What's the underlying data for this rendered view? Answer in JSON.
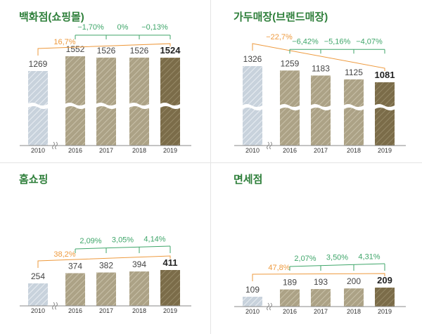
{
  "colors": {
    "title": "#2e7f3a",
    "orange": "#ee9a3e",
    "green": "#3fa66a",
    "axis": "#8a8a8a",
    "base_bar": "#c8d2dc",
    "bar_2016": "#aca286",
    "bar_2017": "#aca286",
    "bar_2018": "#aca286",
    "bar_2019": "#7b6c49",
    "value_text": "#444444",
    "value_text_last": "#222222"
  },
  "chart_data": [
    {
      "type": "bar",
      "title": "백화점(쇼핑몰)",
      "categories": [
        "2010",
        "2016",
        "2017",
        "2018",
        "2019"
      ],
      "values": [
        1269,
        1552,
        1526,
        1526,
        1524
      ],
      "value_labels": [
        "1269",
        "1552",
        "1526",
        "1526",
        "1524"
      ],
      "growth_from_base": "16,7%",
      "yoy_changes": [
        "−1,70%",
        "0%",
        "−0,13%"
      ],
      "axis_break": true,
      "legend": "none"
    },
    {
      "type": "bar",
      "title": "가두매장(브랜드매장)",
      "categories": [
        "2010",
        "2016",
        "2017",
        "2018",
        "2019"
      ],
      "values": [
        1326,
        1259,
        1183,
        1125,
        1081
      ],
      "value_labels": [
        "1326",
        "1259",
        "1183",
        "1125",
        "1081"
      ],
      "growth_from_base": "−22,7%",
      "yoy_changes": [
        "−6,42%",
        "−5,16%",
        "−4,07%"
      ],
      "axis_break": true,
      "legend": "none"
    },
    {
      "type": "bar",
      "title": "홈쇼핑",
      "categories": [
        "2010",
        "2016",
        "2017",
        "2018",
        "2019"
      ],
      "values": [
        254,
        374,
        382,
        394,
        411
      ],
      "value_labels": [
        "254",
        "374",
        "382",
        "394",
        "411"
      ],
      "growth_from_base": "38,2%",
      "yoy_changes": [
        "2,09%",
        "3,05%",
        "4,14%"
      ],
      "axis_break": true,
      "legend": "none"
    },
    {
      "type": "bar",
      "title": "면세점",
      "categories": [
        "2010",
        "2016",
        "2017",
        "2018",
        "2019"
      ],
      "values": [
        109,
        189,
        193,
        200,
        209
      ],
      "value_labels": [
        "109",
        "189",
        "193",
        "200",
        "209"
      ],
      "growth_from_base": "47,8%",
      "yoy_changes": [
        "2,07%",
        "3,50%",
        "4,31%"
      ],
      "axis_break": true,
      "legend": "none"
    }
  ]
}
